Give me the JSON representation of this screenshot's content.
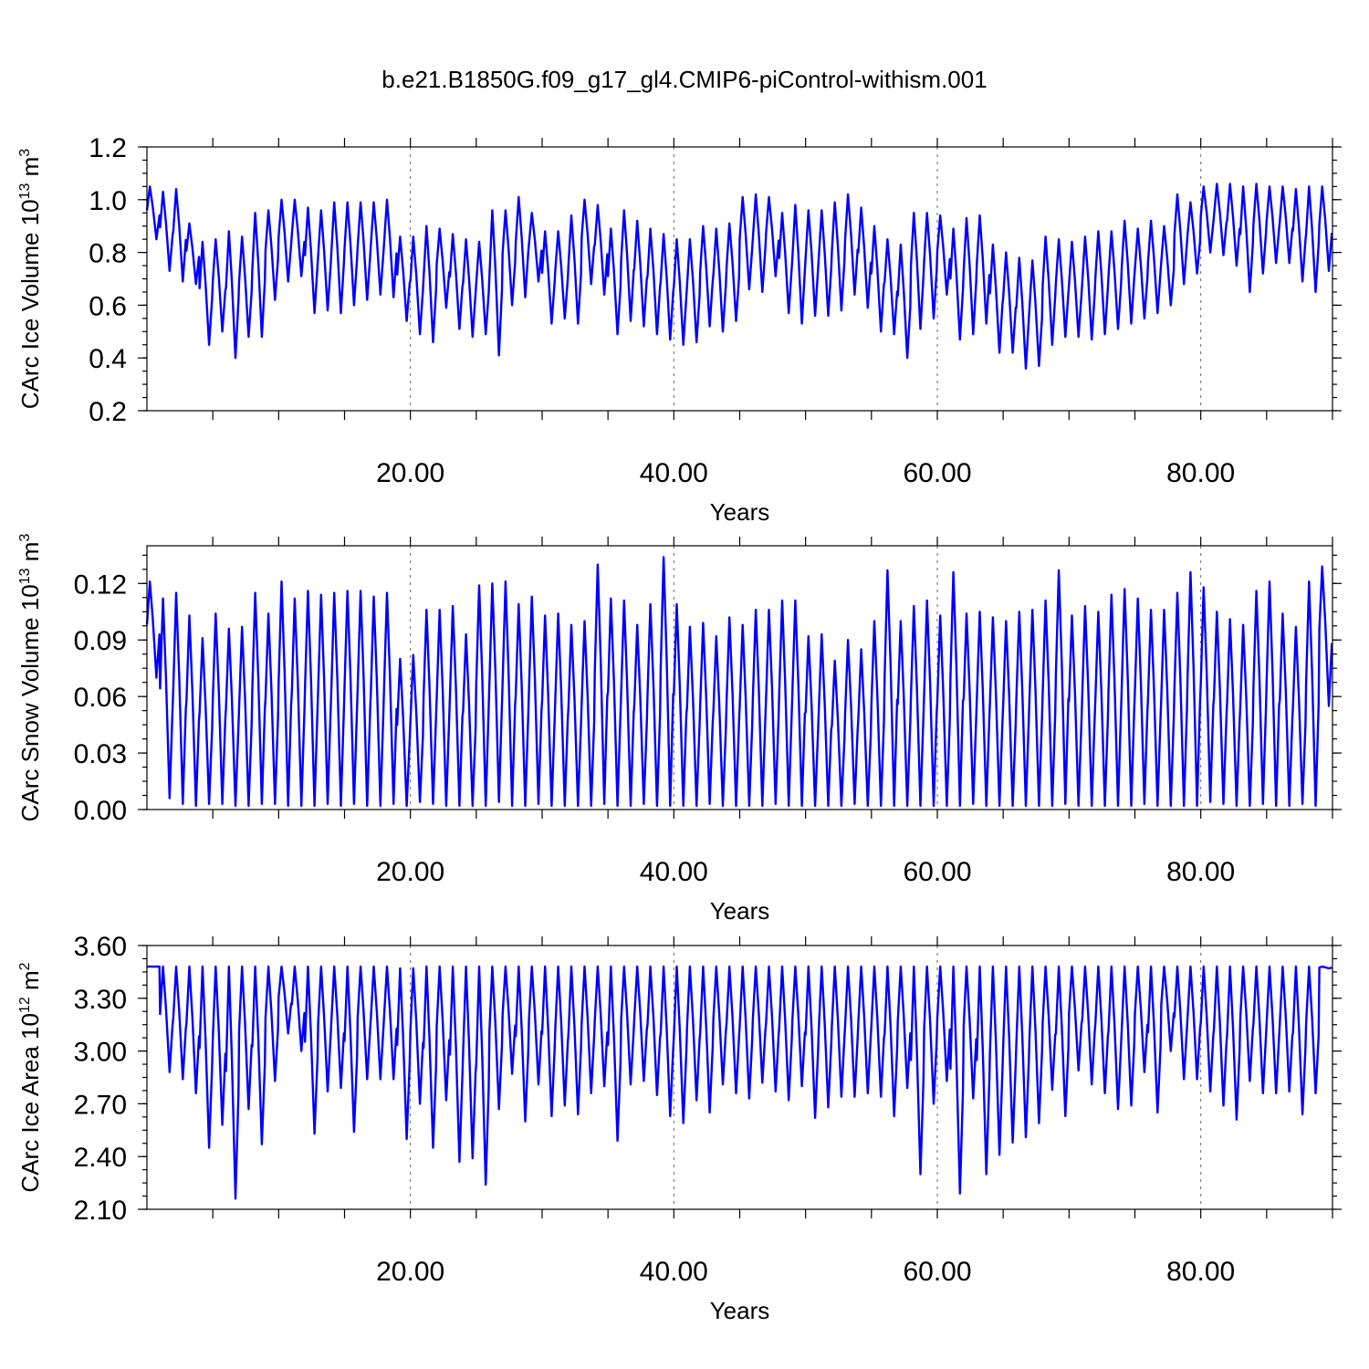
{
  "figure": {
    "title": "b.e21.B1850G.f09_g17_gl4.CMIP6-piControl-withism.001",
    "line_color": "#0000ff"
  },
  "chart_data": [
    {
      "type": "line",
      "xlabel": "Years",
      "ylabel_main": "CArc Ice Volume 10",
      "ylabel_exp": "13",
      "ylabel_unit": " m",
      "ylabel_unit_exp": "3",
      "xlim": [
        0,
        90
      ],
      "ylim": [
        0.2,
        1.2
      ],
      "yticks": [
        0.2,
        0.4,
        0.6,
        0.8,
        1.0,
        1.2
      ],
      "ytick_labels": [
        "0.2",
        "0.4",
        "0.6",
        "0.8",
        "1.0",
        "1.2"
      ],
      "xticks": [
        20,
        40,
        60,
        80
      ],
      "xtick_labels": [
        "20.00",
        "40.00",
        "60.00",
        "80.00"
      ],
      "grid_x": true,
      "series": [
        {
          "values_by_year": {
            "max": [
              1.05,
              1.03,
              1.04,
              0.91,
              0.84,
              0.85,
              0.88,
              0.86,
              0.95,
              0.96,
              1.0,
              1.0,
              0.97,
              0.96,
              0.99,
              0.99,
              0.99,
              0.99,
              1.0,
              0.86,
              0.86,
              0.9,
              0.89,
              0.87,
              0.85,
              0.84,
              0.96,
              0.96,
              1.01,
              0.95,
              0.88,
              0.88,
              0.94,
              1.0,
              0.98,
              0.89,
              0.96,
              0.92,
              0.89,
              0.87,
              0.85,
              0.85,
              0.9,
              0.89,
              0.91,
              1.01,
              1.02,
              1.01,
              0.95,
              0.98,
              0.96,
              0.96,
              0.99,
              1.02,
              0.97,
              0.9,
              0.85,
              0.83,
              0.95,
              0.95,
              0.94,
              0.89,
              0.93,
              0.94,
              0.83,
              0.8,
              0.78,
              0.77,
              0.86,
              0.85,
              0.84,
              0.86,
              0.88,
              0.88,
              0.92,
              0.89,
              0.92,
              0.9,
              1.02,
              0.99,
              1.05,
              1.06,
              1.06,
              1.05,
              1.06,
              1.05,
              1.05,
              1.04,
              1.05,
              1.05
            ],
            "min": [
              0.85,
              0.73,
              0.69,
              0.68,
              0.45,
              0.5,
              0.4,
              0.48,
              0.48,
              0.62,
              0.69,
              0.71,
              0.57,
              0.58,
              0.57,
              0.6,
              0.62,
              0.64,
              0.63,
              0.54,
              0.49,
              0.46,
              0.59,
              0.51,
              0.48,
              0.49,
              0.41,
              0.6,
              0.63,
              0.69,
              0.53,
              0.55,
              0.53,
              0.68,
              0.64,
              0.49,
              0.54,
              0.52,
              0.49,
              0.47,
              0.45,
              0.46,
              0.52,
              0.5,
              0.54,
              0.66,
              0.65,
              0.71,
              0.57,
              0.53,
              0.56,
              0.56,
              0.58,
              0.64,
              0.59,
              0.5,
              0.49,
              0.4,
              0.51,
              0.55,
              0.64,
              0.47,
              0.49,
              0.53,
              0.42,
              0.42,
              0.36,
              0.37,
              0.45,
              0.48,
              0.48,
              0.47,
              0.49,
              0.51,
              0.53,
              0.55,
              0.57,
              0.6,
              0.68,
              0.72,
              0.8,
              0.79,
              0.75,
              0.65,
              0.72,
              0.76,
              0.76,
              0.69,
              0.65,
              0.73
            ]
          }
        }
      ]
    },
    {
      "type": "line",
      "xlabel": "Years",
      "ylabel_main": "CArc Snow Volume 10",
      "ylabel_exp": "13",
      "ylabel_unit": " m",
      "ylabel_unit_exp": "3",
      "xlim": [
        0,
        90
      ],
      "ylim": [
        0.0,
        0.14
      ],
      "yticks": [
        0.0,
        0.03,
        0.06,
        0.09,
        0.12
      ],
      "ytick_labels": [
        "0.00",
        "0.03",
        "0.06",
        "0.09",
        "0.12"
      ],
      "xticks": [
        20,
        40,
        60,
        80
      ],
      "xtick_labels": [
        "20.00",
        "40.00",
        "60.00",
        "80.00"
      ],
      "grid_x": true,
      "series": [
        {
          "values_by_year": {
            "max": [
              0.121,
              0.112,
              0.115,
              0.103,
              0.091,
              0.104,
              0.096,
              0.097,
              0.115,
              0.104,
              0.121,
              0.112,
              0.116,
              0.114,
              0.115,
              0.116,
              0.116,
              0.113,
              0.115,
              0.08,
              0.082,
              0.106,
              0.106,
              0.108,
              0.093,
              0.119,
              0.12,
              0.121,
              0.109,
              0.113,
              0.103,
              0.104,
              0.098,
              0.1,
              0.13,
              0.112,
              0.111,
              0.098,
              0.109,
              0.134,
              0.109,
              0.097,
              0.099,
              0.092,
              0.102,
              0.098,
              0.106,
              0.106,
              0.111,
              0.111,
              0.092,
              0.093,
              0.079,
              0.09,
              0.085,
              0.1,
              0.127,
              0.1,
              0.108,
              0.111,
              0.103,
              0.126,
              0.104,
              0.105,
              0.102,
              0.1,
              0.105,
              0.106,
              0.111,
              0.127,
              0.103,
              0.108,
              0.105,
              0.114,
              0.117,
              0.112,
              0.106,
              0.106,
              0.115,
              0.126,
              0.118,
              0.105,
              0.101,
              0.098,
              0.116,
              0.121,
              0.104,
              0.097,
              0.121,
              0.129
            ],
            "min": [
              0.07,
              0.006,
              0.003,
              0.002,
              0.003,
              0.003,
              0.002,
              0.002,
              0.003,
              0.003,
              0.002,
              0.002,
              0.002,
              0.003,
              0.002,
              0.003,
              0.002,
              0.002,
              0.003,
              0.002,
              0.004,
              0.003,
              0.002,
              0.002,
              0.002,
              0.002,
              0.004,
              0.002,
              0.002,
              0.003,
              0.002,
              0.002,
              0.002,
              0.002,
              0.003,
              0.002,
              0.002,
              0.003,
              0.002,
              0.002,
              0.002,
              0.002,
              0.003,
              0.002,
              0.002,
              0.002,
              0.002,
              0.003,
              0.002,
              0.002,
              0.002,
              0.002,
              0.002,
              0.003,
              0.002,
              0.002,
              0.002,
              0.002,
              0.002,
              0.002,
              0.002,
              0.002,
              0.003,
              0.002,
              0.002,
              0.002,
              0.002,
              0.002,
              0.002,
              0.003,
              0.002,
              0.002,
              0.002,
              0.002,
              0.002,
              0.003,
              0.002,
              0.002,
              0.002,
              0.002,
              0.004,
              0.003,
              0.002,
              0.002,
              0.003,
              0.002,
              0.002,
              0.003,
              0.002,
              0.055
            ]
          }
        }
      ]
    },
    {
      "type": "line",
      "xlabel": "Years",
      "ylabel_main": "CArc Ice Area 10",
      "ylabel_exp": "12",
      "ylabel_unit": " m",
      "ylabel_unit_exp": "2",
      "xlim": [
        0,
        90
      ],
      "ylim": [
        2.1,
        3.6
      ],
      "yticks": [
        2.1,
        2.4,
        2.7,
        3.0,
        3.3,
        3.6
      ],
      "ytick_labels": [
        "2.10",
        "2.40",
        "2.70",
        "3.00",
        "3.30",
        "3.60"
      ],
      "xticks": [
        20,
        40,
        60,
        80
      ],
      "xtick_labels": [
        "20.00",
        "40.00",
        "60.00",
        "80.00"
      ],
      "grid_x": true,
      "series": [
        {
          "values_by_year": {
            "max": [
              3.48,
              3.48,
              3.48,
              3.48,
              3.48,
              3.48,
              3.48,
              3.48,
              3.48,
              3.48,
              3.48,
              3.48,
              3.48,
              3.48,
              3.48,
              3.48,
              3.48,
              3.48,
              3.48,
              3.47,
              3.47,
              3.48,
              3.48,
              3.48,
              3.48,
              3.48,
              3.48,
              3.48,
              3.48,
              3.48,
              3.48,
              3.48,
              3.48,
              3.48,
              3.48,
              3.48,
              3.48,
              3.48,
              3.48,
              3.48,
              3.48,
              3.48,
              3.48,
              3.48,
              3.48,
              3.48,
              3.48,
              3.48,
              3.48,
              3.48,
              3.48,
              3.48,
              3.48,
              3.48,
              3.48,
              3.48,
              3.48,
              3.48,
              3.48,
              3.48,
              3.48,
              3.48,
              3.48,
              3.48,
              3.48,
              3.48,
              3.48,
              3.48,
              3.48,
              3.48,
              3.48,
              3.48,
              3.48,
              3.48,
              3.48,
              3.48,
              3.48,
              3.48,
              3.48,
              3.48,
              3.48,
              3.48,
              3.48,
              3.48,
              3.48,
              3.48,
              3.48,
              3.48,
              3.48,
              3.48
            ],
            "min": [
              3.48,
              2.88,
              2.84,
              2.76,
              2.45,
              2.58,
              2.16,
              2.67,
              2.47,
              2.83,
              3.1,
              3.0,
              2.53,
              2.77,
              2.79,
              2.54,
              2.84,
              2.84,
              2.84,
              2.5,
              2.7,
              2.45,
              2.72,
              2.37,
              2.39,
              2.24,
              2.67,
              2.87,
              2.6,
              2.81,
              2.63,
              2.69,
              2.64,
              2.76,
              2.8,
              2.49,
              2.81,
              2.83,
              2.75,
              2.63,
              2.59,
              2.72,
              2.65,
              2.81,
              2.76,
              2.73,
              2.82,
              2.77,
              2.72,
              2.8,
              2.62,
              2.68,
              2.74,
              2.74,
              2.76,
              2.74,
              2.63,
              2.79,
              2.3,
              2.7,
              2.83,
              2.19,
              2.73,
              2.3,
              2.41,
              2.48,
              2.51,
              2.59,
              2.78,
              2.63,
              2.89,
              2.81,
              2.76,
              2.67,
              2.69,
              2.88,
              2.65,
              3.0,
              2.84,
              2.84,
              2.77,
              2.69,
              2.61,
              2.83,
              2.76,
              2.76,
              2.77,
              2.64,
              2.76,
              3.47
            ]
          }
        }
      ]
    }
  ]
}
